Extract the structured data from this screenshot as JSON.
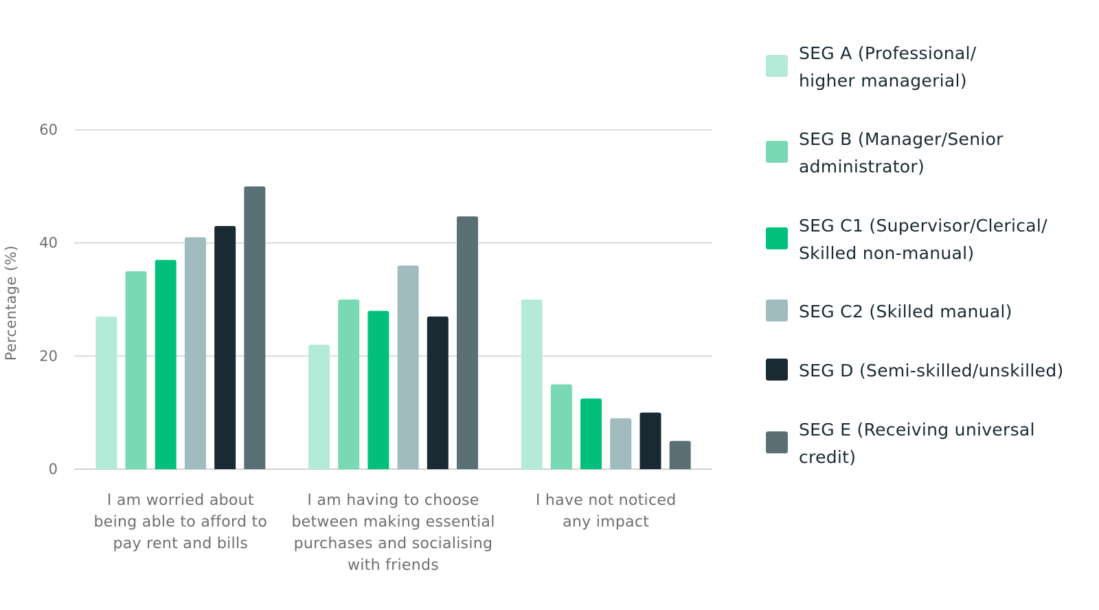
{
  "chart_data": {
    "type": "bar",
    "ylabel": "Percentage (%)",
    "ylim": [
      0,
      60
    ],
    "yticks": [
      0,
      20,
      40,
      60
    ],
    "grid": true,
    "legend_position": "right",
    "categories": [
      "I am worried about\nbeing able to afford to\npay rent and bills",
      "I am having to choose\nbetween making essential\npurchases and socialising\nwith friends",
      "I have not noticed\nany impact"
    ],
    "series": [
      {
        "name": "SEG A (Professional/\nhigher managerial)",
        "color": "#b3ead8",
        "values": [
          27,
          22,
          30
        ]
      },
      {
        "name": "SEG B (Manager/Senior\nadministrator)",
        "color": "#78d9b4",
        "values": [
          35,
          30,
          15
        ]
      },
      {
        "name": "SEG C1 (Supervisor/Clerical/\nSkilled non-manual)",
        "color": "#00c07c",
        "values": [
          37,
          28,
          12.5
        ]
      },
      {
        "name": "SEG C2 (Skilled manual)",
        "color": "#a0bcbf",
        "values": [
          41,
          36,
          9
        ]
      },
      {
        "name": "SEG D (Semi-skilled/unskilled)",
        "color": "#1a2a33",
        "values": [
          43,
          27,
          10
        ]
      },
      {
        "name": "SEG E (Receiving universal\ncredit)",
        "color": "#5b7075",
        "values": [
          50,
          44.7,
          5
        ]
      }
    ]
  }
}
